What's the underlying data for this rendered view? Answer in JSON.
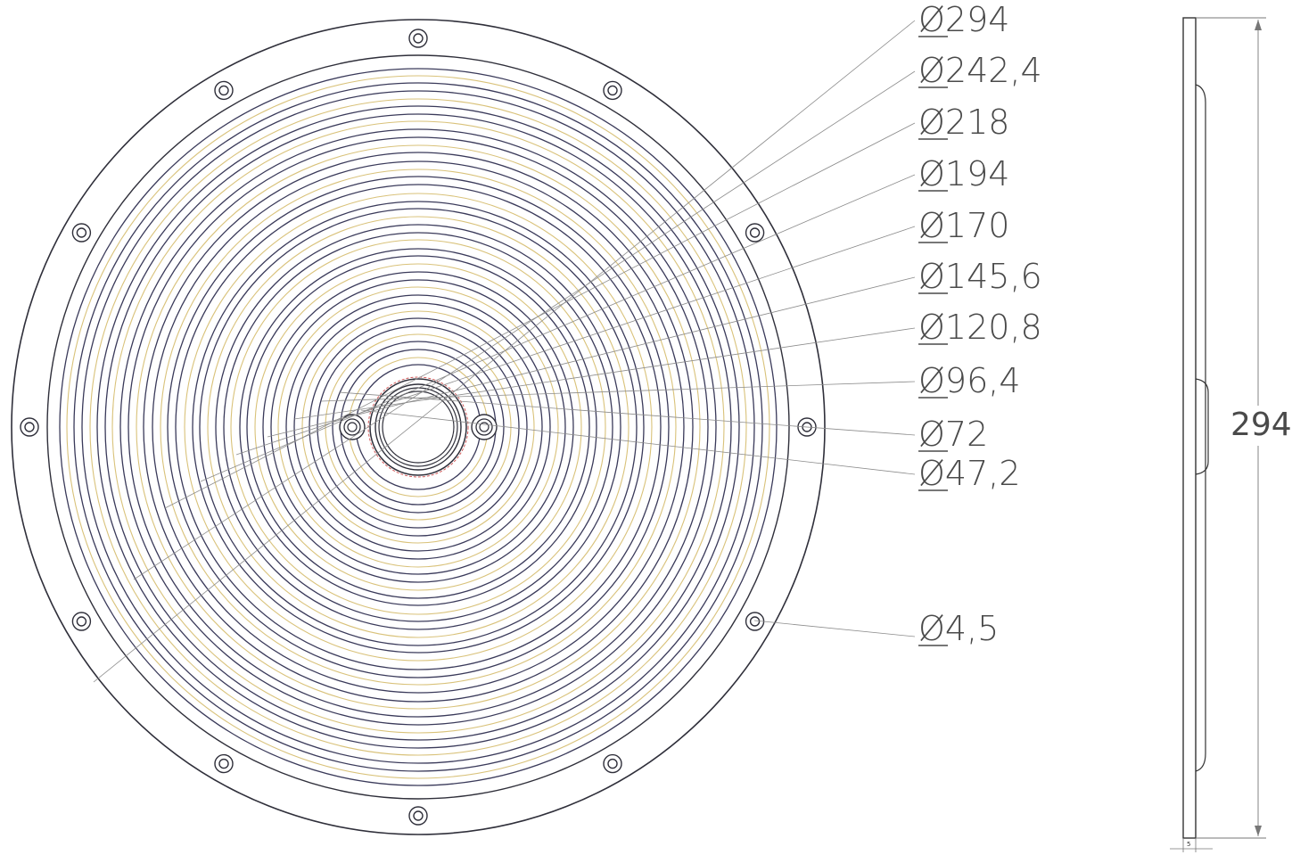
{
  "diameter_labels": [
    {
      "text": "Ø294",
      "ring": "outer"
    },
    {
      "text": "Ø242,4",
      "ring": "r1"
    },
    {
      "text": "Ø218",
      "ring": "r2"
    },
    {
      "text": "Ø194",
      "ring": "r3"
    },
    {
      "text": "Ø170",
      "ring": "r4"
    },
    {
      "text": "Ø145,6",
      "ring": "r5"
    },
    {
      "text": "Ø120,8",
      "ring": "r6"
    },
    {
      "text": "Ø96,4",
      "ring": "r7"
    },
    {
      "text": "Ø72",
      "ring": "r8"
    },
    {
      "text": "Ø47,2",
      "ring": "r9"
    }
  ],
  "hole_label": "Ø4,5",
  "side_view": {
    "height_label": "294",
    "thickness_label": "5"
  },
  "colors": {
    "outline": "#2f2f3a",
    "ring_dark": "#3a3a5a",
    "ring_amber": "#d9c27a",
    "leader": "#8c8c8c",
    "accent_red": "#d25a5a"
  }
}
